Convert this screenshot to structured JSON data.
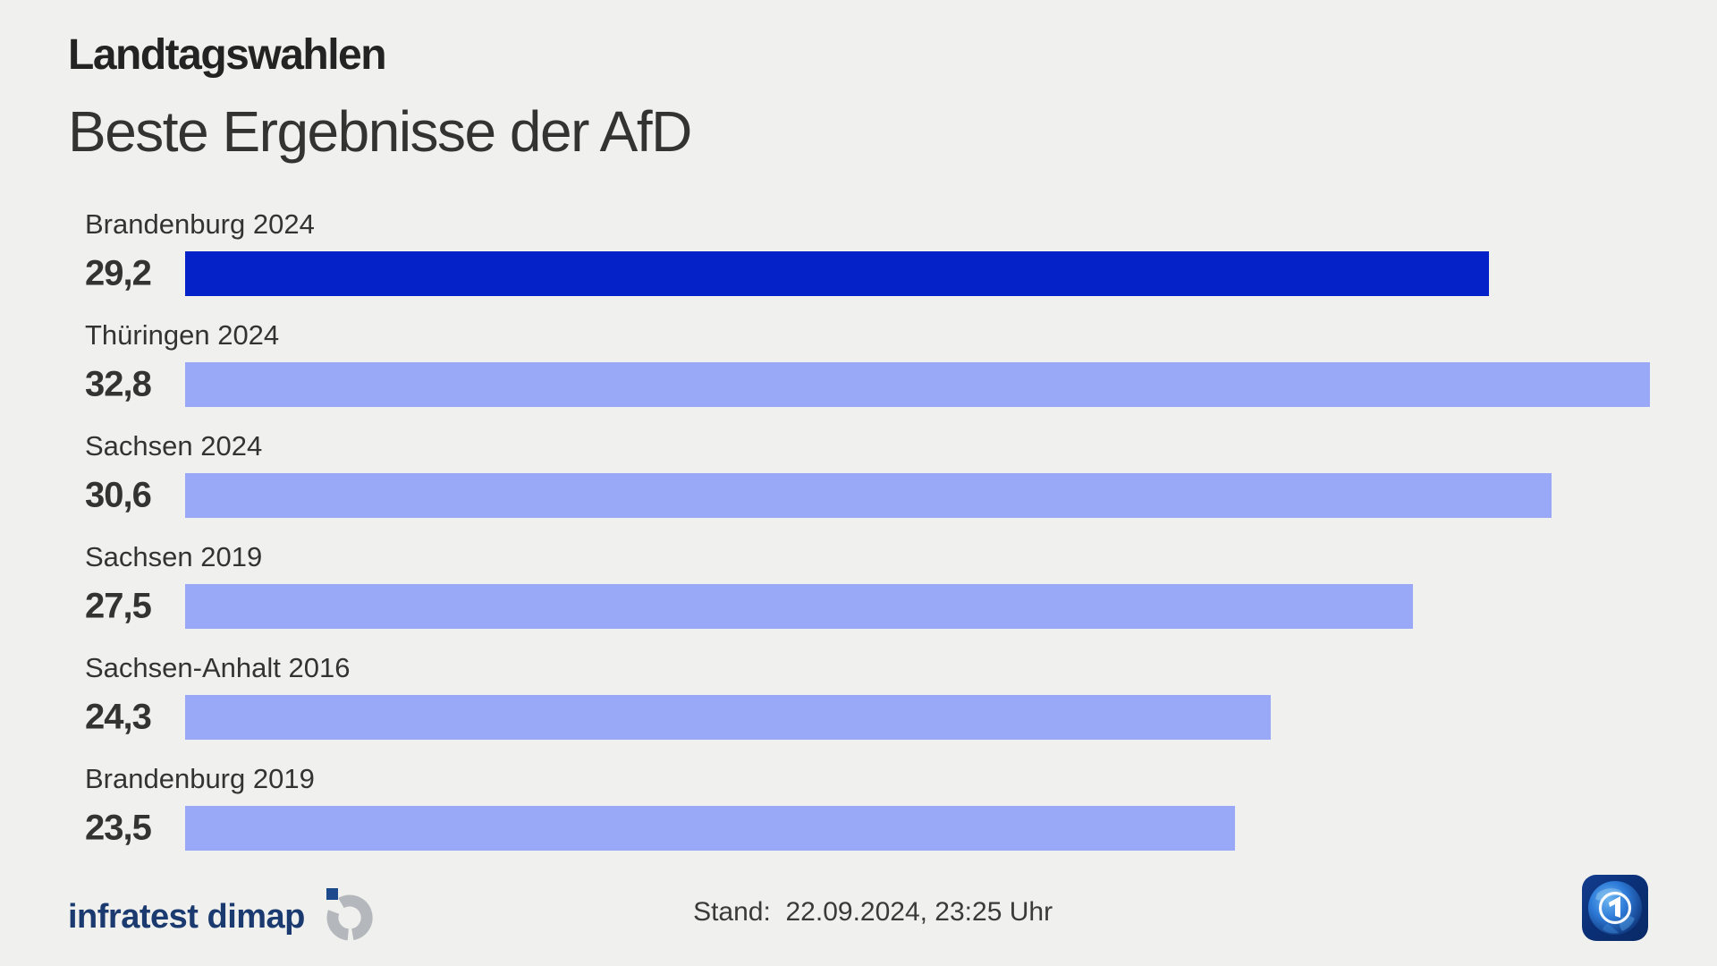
{
  "page": {
    "background": "#f0f0ee",
    "kind": "tv-election-graphic"
  },
  "header": {
    "kicker": "Landtagswahlen",
    "title": "Beste Ergebnisse der AfD"
  },
  "chart_data": {
    "type": "bar",
    "orientation": "horizontal",
    "unit": "percent",
    "xlim": [
      0,
      34.3
    ],
    "grid": false,
    "legend": false,
    "categories": [
      "Brandenburg 2024",
      "Thüringen 2024",
      "Sachsen 2024",
      "Sachsen 2019",
      "Sachsen-Anhalt 2016",
      "Brandenburg 2019"
    ],
    "values": [
      29.2,
      32.8,
      30.6,
      27.5,
      24.3,
      23.5
    ],
    "rows": [
      {
        "label": "Brandenburg 2024",
        "value": 29.2,
        "value_label": "29,2",
        "highlight": true
      },
      {
        "label": "Thüringen 2024",
        "value": 32.8,
        "value_label": "32,8",
        "highlight": false
      },
      {
        "label": "Sachsen 2024",
        "value": 30.6,
        "value_label": "30,6",
        "highlight": false
      },
      {
        "label": "Sachsen 2019",
        "value": 27.5,
        "value_label": "27,5",
        "highlight": false
      },
      {
        "label": "Sachsen-Anhalt 2016",
        "value": 24.3,
        "value_label": "24,3",
        "highlight": false
      },
      {
        "label": "Brandenburg 2019",
        "value": 23.5,
        "value_label": "23,5",
        "highlight": false
      }
    ],
    "colors": {
      "highlight_bar": "#0522c8",
      "bar": "#9aa8f8",
      "text": "#333432"
    }
  },
  "footer": {
    "source_logo_text": "infratest dimap",
    "source_logo_mark": "infratest-dimap-ring-mark",
    "stand_label": "Stand:",
    "stand_value": "22.09.2024, 23:25 Uhr",
    "ard_logo": "ard-tagesschau-globe-app-icon"
  }
}
